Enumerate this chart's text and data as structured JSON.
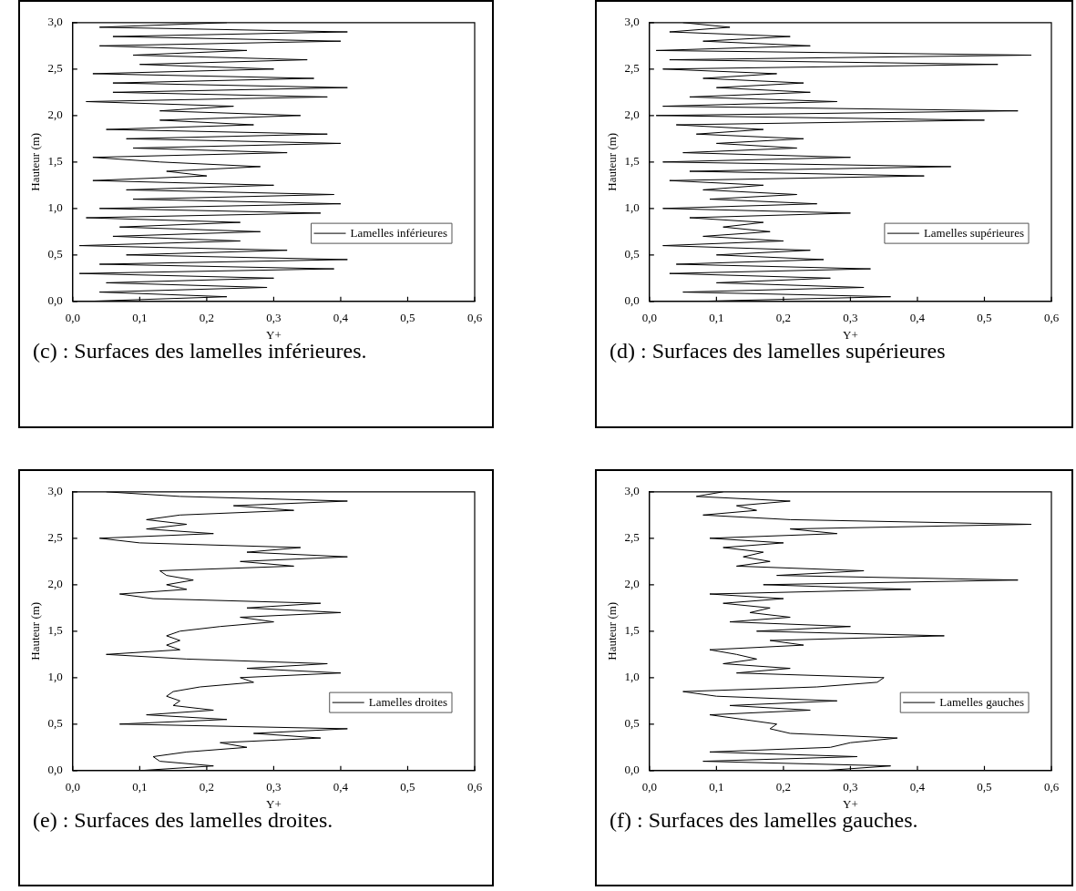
{
  "chart_data": [
    {
      "type": "line",
      "title": "(c) : Surfaces des lamelles inférieures.",
      "xlabel": "Y+",
      "ylabel": "Hauteur (m)",
      "legend": "right",
      "grid": false,
      "marker": "none",
      "xlim": [
        0,
        0.6
      ],
      "ylim": [
        0,
        3
      ],
      "xticks": [
        {
          "value": 0,
          "label": "0,0"
        },
        {
          "value": 0.1,
          "label": "0,1"
        },
        {
          "value": 0.2,
          "label": "0,2"
        },
        {
          "value": 0.3,
          "label": "0,3"
        },
        {
          "value": 0.4,
          "label": "0,4"
        },
        {
          "value": 0.5,
          "label": "0,5"
        },
        {
          "value": 0.6,
          "label": "0,6"
        }
      ],
      "yticks": [
        {
          "value": 0,
          "label": "0,0"
        },
        {
          "value": 0.5,
          "label": "0,5"
        },
        {
          "value": 1,
          "label": "1,0"
        },
        {
          "value": 1.5,
          "label": "1,5"
        },
        {
          "value": 2,
          "label": "2,0"
        },
        {
          "value": 2.5,
          "label": "2,5"
        },
        {
          "value": 3,
          "label": "3,0"
        }
      ],
      "series": [
        {
          "name": "Lamelles inférieures",
          "color": "#000000",
          "x": [
            0.02,
            0.23,
            0.04,
            0.29,
            0.05,
            0.3,
            0.01,
            0.39,
            0.04,
            0.41,
            0.08,
            0.32,
            0.01,
            0.25,
            0.06,
            0.28,
            0.07,
            0.25,
            0.02,
            0.37,
            0.04,
            0.4,
            0.09,
            0.39,
            0.08,
            0.3,
            0.03,
            0.2,
            0.14,
            0.28,
            0.13,
            0.03,
            0.32,
            0.09,
            0.4,
            0.08,
            0.38,
            0.05,
            0.27,
            0.13,
            0.34,
            0.13,
            0.24,
            0.02,
            0.38,
            0.06,
            0.41,
            0.06,
            0.36,
            0.03,
            0.3,
            0.1,
            0.35,
            0.09,
            0.26,
            0.04,
            0.4,
            0.06,
            0.41,
            0.04,
            0.23
          ],
          "values": [
            0,
            0.05,
            0.1,
            0.15,
            0.2,
            0.25,
            0.3,
            0.35,
            0.4,
            0.45,
            0.5,
            0.55,
            0.6,
            0.65,
            0.7,
            0.75,
            0.8,
            0.85,
            0.9,
            0.95,
            1,
            1.05,
            1.1,
            1.15,
            1.2,
            1.25,
            1.3,
            1.35,
            1.4,
            1.45,
            1.5,
            1.55,
            1.6,
            1.65,
            1.7,
            1.75,
            1.8,
            1.85,
            1.9,
            1.95,
            2,
            2.05,
            2.1,
            2.15,
            2.2,
            2.25,
            2.3,
            2.35,
            2.4,
            2.45,
            2.5,
            2.55,
            2.6,
            2.65,
            2.7,
            2.75,
            2.8,
            2.85,
            2.9,
            2.95,
            3
          ]
        }
      ]
    },
    {
      "type": "line",
      "title": "(d) : Surfaces des lamelles supérieures",
      "xlabel": "Y+",
      "ylabel": "Hauteur (m)",
      "legend": "right",
      "grid": false,
      "marker": "none",
      "xlim": [
        0,
        0.6
      ],
      "ylim": [
        0,
        3
      ],
      "xticks": [
        {
          "value": 0,
          "label": "0,0"
        },
        {
          "value": 0.1,
          "label": "0,1"
        },
        {
          "value": 0.2,
          "label": "0,2"
        },
        {
          "value": 0.3,
          "label": "0,3"
        },
        {
          "value": 0.4,
          "label": "0,4"
        },
        {
          "value": 0.5,
          "label": "0,5"
        },
        {
          "value": 0.6,
          "label": "0,6"
        }
      ],
      "yticks": [
        {
          "value": 0,
          "label": "0,0"
        },
        {
          "value": 0.5,
          "label": "0,5"
        },
        {
          "value": 1,
          "label": "1,0"
        },
        {
          "value": 1.5,
          "label": "1,5"
        },
        {
          "value": 2,
          "label": "2,0"
        },
        {
          "value": 2.5,
          "label": "2,5"
        },
        {
          "value": 3,
          "label": "3,0"
        }
      ],
      "series": [
        {
          "name": "Lamelles supérieures",
          "color": "#000000",
          "x": [
            0.07,
            0.36,
            0.05,
            0.32,
            0.1,
            0.27,
            0.03,
            0.33,
            0.04,
            0.26,
            0.1,
            0.24,
            0.02,
            0.2,
            0.08,
            0.18,
            0.11,
            0.17,
            0.06,
            0.3,
            0.02,
            0.25,
            0.09,
            0.22,
            0.08,
            0.17,
            0.03,
            0.41,
            0.06,
            0.45,
            0.02,
            0.3,
            0.05,
            0.22,
            0.1,
            0.23,
            0.07,
            0.17,
            0.04,
            0.5,
            0.01,
            0.55,
            0.02,
            0.28,
            0.06,
            0.24,
            0.1,
            0.23,
            0.08,
            0.19,
            0.02,
            0.52,
            0.03,
            0.57,
            0.01,
            0.24,
            0.08,
            0.21,
            0.03,
            0.12,
            0.05
          ],
          "values": [
            0,
            0.05,
            0.1,
            0.15,
            0.2,
            0.25,
            0.3,
            0.35,
            0.4,
            0.45,
            0.5,
            0.55,
            0.6,
            0.65,
            0.7,
            0.75,
            0.8,
            0.85,
            0.9,
            0.95,
            1,
            1.05,
            1.1,
            1.15,
            1.2,
            1.25,
            1.3,
            1.35,
            1.4,
            1.45,
            1.5,
            1.55,
            1.6,
            1.65,
            1.7,
            1.75,
            1.8,
            1.85,
            1.9,
            1.95,
            2,
            2.05,
            2.1,
            2.15,
            2.2,
            2.25,
            2.3,
            2.35,
            2.4,
            2.45,
            2.5,
            2.55,
            2.6,
            2.65,
            2.7,
            2.75,
            2.8,
            2.85,
            2.9,
            2.95,
            3
          ]
        }
      ]
    },
    {
      "type": "line",
      "title": "(e) : Surfaces des lamelles droites.",
      "xlabel": "Y+",
      "ylabel": "Hauteur (m)",
      "legend": "right",
      "grid": false,
      "marker": "none",
      "xlim": [
        0,
        0.6
      ],
      "ylim": [
        0,
        3
      ],
      "xticks": [
        {
          "value": 0,
          "label": "0,0"
        },
        {
          "value": 0.1,
          "label": "0,1"
        },
        {
          "value": 0.2,
          "label": "0,2"
        },
        {
          "value": 0.3,
          "label": "0,3"
        },
        {
          "value": 0.4,
          "label": "0,4"
        },
        {
          "value": 0.5,
          "label": "0,5"
        },
        {
          "value": 0.6,
          "label": "0,6"
        }
      ],
      "yticks": [
        {
          "value": 0,
          "label": "0,0"
        },
        {
          "value": 0.5,
          "label": "0,5"
        },
        {
          "value": 1,
          "label": "1,0"
        },
        {
          "value": 1.5,
          "label": "1,5"
        },
        {
          "value": 2,
          "label": "2,0"
        },
        {
          "value": 2.5,
          "label": "2,5"
        },
        {
          "value": 3,
          "label": "3,0"
        }
      ],
      "series": [
        {
          "name": "Lamelles droites",
          "color": "#000000",
          "x": [
            0.1,
            0.21,
            0.13,
            0.12,
            0.17,
            0.26,
            0.22,
            0.37,
            0.27,
            0.41,
            0.07,
            0.23,
            0.11,
            0.21,
            0.15,
            0.16,
            0.14,
            0.15,
            0.19,
            0.27,
            0.25,
            0.4,
            0.26,
            0.38,
            0.17,
            0.05,
            0.16,
            0.14,
            0.16,
            0.14,
            0.16,
            0.22,
            0.3,
            0.25,
            0.4,
            0.26,
            0.37,
            0.12,
            0.07,
            0.17,
            0.14,
            0.18,
            0.14,
            0.13,
            0.33,
            0.25,
            0.41,
            0.26,
            0.34,
            0.1,
            0.04,
            0.21,
            0.11,
            0.17,
            0.11,
            0.16,
            0.33,
            0.24,
            0.41,
            0.16,
            0.05
          ],
          "values": [
            0,
            0.05,
            0.1,
            0.15,
            0.2,
            0.25,
            0.3,
            0.35,
            0.4,
            0.45,
            0.5,
            0.55,
            0.6,
            0.65,
            0.7,
            0.75,
            0.8,
            0.85,
            0.9,
            0.95,
            1,
            1.05,
            1.1,
            1.15,
            1.2,
            1.25,
            1.3,
            1.35,
            1.4,
            1.45,
            1.5,
            1.55,
            1.6,
            1.65,
            1.7,
            1.75,
            1.8,
            1.85,
            1.9,
            1.95,
            2,
            2.05,
            2.1,
            2.15,
            2.2,
            2.25,
            2.3,
            2.35,
            2.4,
            2.45,
            2.5,
            2.55,
            2.6,
            2.65,
            2.7,
            2.75,
            2.8,
            2.85,
            2.9,
            2.95,
            3
          ]
        }
      ]
    },
    {
      "type": "line",
      "title": "(f) : Surfaces des lamelles gauches.",
      "xlabel": "Y+",
      "ylabel": "Hauteur (m)",
      "legend": "right",
      "grid": false,
      "marker": "none",
      "xlim": [
        0,
        0.6
      ],
      "ylim": [
        0,
        3
      ],
      "xticks": [
        {
          "value": 0,
          "label": "0,0"
        },
        {
          "value": 0.1,
          "label": "0,1"
        },
        {
          "value": 0.2,
          "label": "0,2"
        },
        {
          "value": 0.3,
          "label": "0,3"
        },
        {
          "value": 0.4,
          "label": "0,4"
        },
        {
          "value": 0.5,
          "label": "0,5"
        },
        {
          "value": 0.6,
          "label": "0,6"
        }
      ],
      "yticks": [
        {
          "value": 0,
          "label": "0,0"
        },
        {
          "value": 0.5,
          "label": "0,5"
        },
        {
          "value": 1,
          "label": "1,0"
        },
        {
          "value": 1.5,
          "label": "1,5"
        },
        {
          "value": 2,
          "label": "2,0"
        },
        {
          "value": 2.5,
          "label": "2,5"
        },
        {
          "value": 3,
          "label": "3,0"
        }
      ],
      "series": [
        {
          "name": "Lamelles gauches",
          "color": "#000000",
          "x": [
            0.26,
            0.36,
            0.08,
            0.31,
            0.09,
            0.27,
            0.3,
            0.37,
            0.21,
            0.18,
            0.19,
            0.14,
            0.09,
            0.24,
            0.12,
            0.28,
            0.1,
            0.05,
            0.25,
            0.34,
            0.35,
            0.13,
            0.21,
            0.11,
            0.16,
            0.13,
            0.09,
            0.23,
            0.18,
            0.44,
            0.16,
            0.3,
            0.12,
            0.21,
            0.15,
            0.18,
            0.11,
            0.2,
            0.09,
            0.39,
            0.17,
            0.55,
            0.19,
            0.32,
            0.13,
            0.18,
            0.14,
            0.17,
            0.11,
            0.2,
            0.09,
            0.28,
            0.21,
            0.57,
            0.21,
            0.08,
            0.16,
            0.13,
            0.21,
            0.07,
            0.11
          ],
          "values": [
            0,
            0.05,
            0.1,
            0.15,
            0.2,
            0.25,
            0.3,
            0.35,
            0.4,
            0.45,
            0.5,
            0.55,
            0.6,
            0.65,
            0.7,
            0.75,
            0.8,
            0.85,
            0.9,
            0.95,
            1,
            1.05,
            1.1,
            1.15,
            1.2,
            1.25,
            1.3,
            1.35,
            1.4,
            1.45,
            1.5,
            1.55,
            1.6,
            1.65,
            1.7,
            1.75,
            1.8,
            1.85,
            1.9,
            1.95,
            2,
            2.05,
            2.1,
            2.15,
            2.2,
            2.25,
            2.3,
            2.35,
            2.4,
            2.45,
            2.5,
            2.55,
            2.6,
            2.65,
            2.7,
            2.75,
            2.8,
            2.85,
            2.9,
            2.95,
            3
          ]
        }
      ]
    }
  ]
}
